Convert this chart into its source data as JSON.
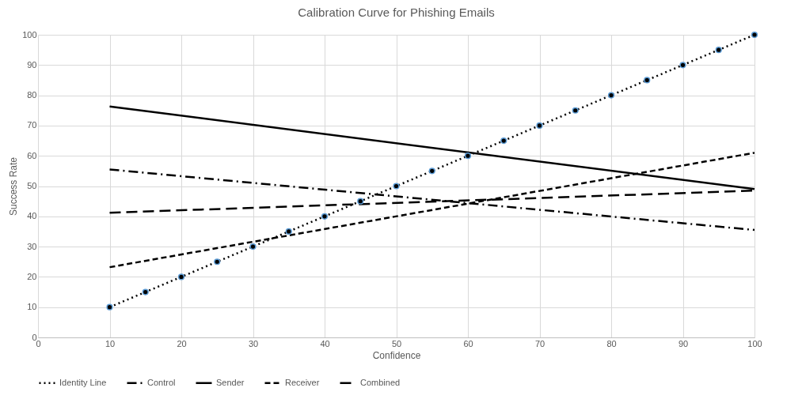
{
  "chart_data": {
    "type": "line",
    "title": "Calibration Curve for Phishing Emails",
    "xlabel": "Confidence",
    "ylabel": "Success Rate",
    "xlim": [
      0,
      100
    ],
    "xticks": [
      0,
      10,
      20,
      30,
      40,
      50,
      60,
      70,
      80,
      90,
      100
    ],
    "ylim": [
      0,
      100
    ],
    "yticks": [
      0,
      10,
      20,
      30,
      40,
      50,
      60,
      70,
      80,
      90,
      100
    ],
    "grid": true,
    "legend": "bottom",
    "series": [
      {
        "name": "Identity Line",
        "color": "#000000",
        "line_style": "dotted",
        "marker": "circle",
        "x": [
          10,
          15,
          20,
          25,
          30,
          35,
          40,
          45,
          50,
          55,
          60,
          65,
          70,
          75,
          80,
          85,
          90,
          95,
          100
        ],
        "values": [
          10,
          15,
          20,
          25,
          30,
          35,
          40,
          45,
          50,
          55,
          60,
          65,
          70,
          75,
          80,
          85,
          90,
          95,
          100
        ]
      },
      {
        "name": "Control",
        "color": "#000000",
        "line_style": "dashdot",
        "marker": "none",
        "x": [
          10,
          100
        ],
        "values": [
          55.5,
          35.5
        ]
      },
      {
        "name": "Sender",
        "color": "#000000",
        "line_style": "solid",
        "marker": "none",
        "x": [
          10,
          100
        ],
        "values": [
          76.3,
          49
        ]
      },
      {
        "name": "Receiver",
        "color": "#000000",
        "line_style": "dashed",
        "marker": "none",
        "x": [
          10,
          100
        ],
        "values": [
          23.2,
          61
        ]
      },
      {
        "name": "Combined",
        "color": "#000000",
        "line_style": "longdashed",
        "marker": "none",
        "x": [
          10,
          100
        ],
        "values": [
          41.2,
          48.5
        ]
      }
    ]
  }
}
